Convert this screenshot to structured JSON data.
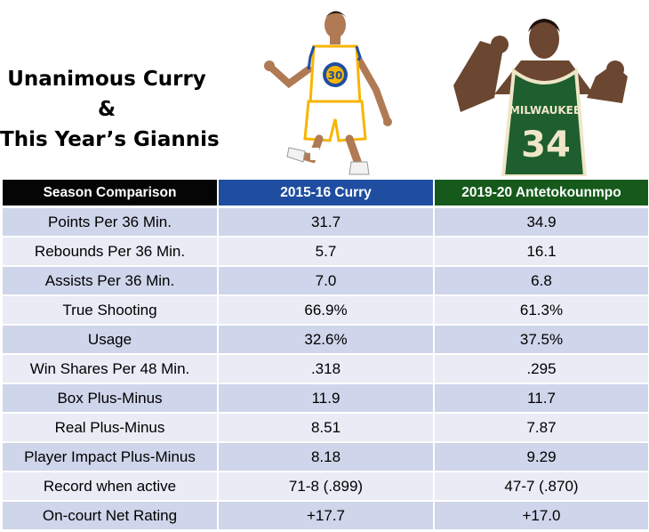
{
  "title": {
    "line1": "Unanimous Curry",
    "line2": "&",
    "line3": "This Year’s Giannis"
  },
  "colors": {
    "header_label": "#050505",
    "header_curry": "#1f4ea1",
    "header_giannis": "#155a1b",
    "row_odd": "#cfd5ea",
    "row_even": "#e9ebf5",
    "curry_jersey": "#ffffff",
    "curry_trim": "#f7b500",
    "giannis_jersey": "#1e5e2f",
    "giannis_text": "#efe6c8"
  },
  "images": {
    "curry": {
      "description_icon": "basketball-player-curry",
      "jersey_number": "30"
    },
    "giannis": {
      "description_icon": "basketball-player-giannis",
      "jersey_text": "MILWAUKEE",
      "jersey_number": "34"
    }
  },
  "chart_data": {
    "type": "table",
    "columns": [
      "Season Comparison",
      "2015-16 Curry",
      "2019-20 Antetokounmpo"
    ],
    "rows": [
      [
        "Points Per 36 Min.",
        "31.7",
        "34.9"
      ],
      [
        "Rebounds Per 36 Min.",
        "5.7",
        "16.1"
      ],
      [
        "Assists Per 36 Min.",
        "7.0",
        "6.8"
      ],
      [
        "True Shooting",
        "66.9%",
        "61.3%"
      ],
      [
        "Usage",
        "32.6%",
        "37.5%"
      ],
      [
        "Win Shares Per 48 Min.",
        ".318",
        ".295"
      ],
      [
        "Box Plus-Minus",
        "11.9",
        "11.7"
      ],
      [
        "Real Plus-Minus",
        "8.51",
        "7.87"
      ],
      [
        "Player Impact Plus-Minus",
        "8.18",
        "9.29"
      ],
      [
        "Record when active",
        "71-8 (.899)",
        "47-7 (.870)"
      ],
      [
        "On-court Net Rating",
        "+17.7",
        "+17.0"
      ]
    ]
  }
}
